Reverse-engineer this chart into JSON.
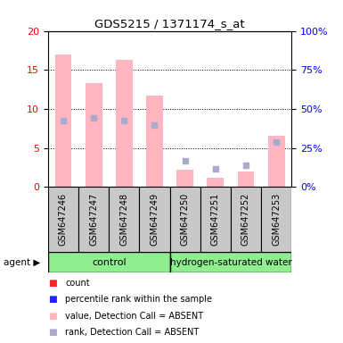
{
  "title": "GDS5215 / 1371174_s_at",
  "samples": [
    "GSM647246",
    "GSM647247",
    "GSM647248",
    "GSM647249",
    "GSM647250",
    "GSM647251",
    "GSM647252",
    "GSM647253"
  ],
  "value_absent": [
    17.0,
    13.3,
    16.3,
    11.7,
    2.2,
    1.2,
    2.0,
    6.5
  ],
  "rank_absent_pct": [
    42.5,
    44.0,
    42.5,
    39.5,
    16.5,
    11.5,
    14.0,
    29.0
  ],
  "ylim_left": [
    0,
    20
  ],
  "ylim_right": [
    0,
    100
  ],
  "yticks_left": [
    0,
    5,
    10,
    15,
    20
  ],
  "yticks_right": [
    0,
    25,
    50,
    75,
    100
  ],
  "absent_value_color": "#FFB6C1",
  "absent_rank_color": "#AAAACC",
  "present_value_color": "#FF2222",
  "present_rank_color": "#2222FF",
  "legend_items": [
    {
      "label": "count",
      "color": "#FF2222"
    },
    {
      "label": "percentile rank within the sample",
      "color": "#2222FF"
    },
    {
      "label": "value, Detection Call = ABSENT",
      "color": "#FFB6C1"
    },
    {
      "label": "rank, Detection Call = ABSENT",
      "color": "#AAAACC"
    }
  ],
  "control_color": "#90EE90",
  "hydrogen_color": "#90EE90",
  "sample_box_color": "#C8C8C8",
  "bar_width": 0.55
}
